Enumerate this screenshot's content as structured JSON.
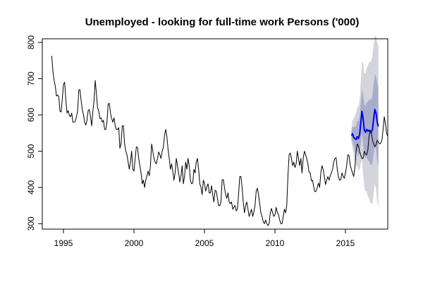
{
  "chart_data": {
    "type": "line",
    "title": "Unemployed - looking for full-time work Persons ('000)",
    "xlabel": "",
    "ylabel": "",
    "xlim": [
      1993.5,
      2018.0
    ],
    "ylim": [
      285,
      810
    ],
    "x_ticks": [
      1995,
      2000,
      2005,
      2010,
      2015
    ],
    "x_tick_labels": [
      "1995",
      "2000",
      "2005",
      "2010",
      "2015"
    ],
    "y_ticks": [
      300,
      400,
      500,
      600,
      700,
      800
    ],
    "y_tick_labels": [
      "300",
      "400",
      "500",
      "600",
      "700",
      "800"
    ],
    "grid": false,
    "legend": "none",
    "series": [
      {
        "role": "history",
        "color": "#000000",
        "x_start": 1994.17,
        "x_step": 0.0833333,
        "values": [
          763,
          720,
          695,
          680,
          652,
          655,
          650,
          610,
          608,
          645,
          685,
          690,
          640,
          605,
          612,
          598,
          595,
          605,
          580,
          580,
          582,
          595,
          610,
          668,
          670,
          640,
          615,
          600,
          580,
          572,
          585,
          612,
          615,
          595,
          570,
          610,
          640,
          695,
          660,
          620,
          610,
          590,
          592,
          580,
          585,
          560,
          560,
          580,
          630,
          632,
          605,
          590,
          580,
          592,
          570,
          560,
          560,
          565,
          508,
          520,
          570,
          570,
          520,
          500,
          490,
          470,
          450,
          472,
          500,
          450,
          445,
          480,
          512,
          510,
          480,
          460,
          440,
          410,
          420,
          400,
          420,
          432,
          445,
          432,
          460,
          520,
          500,
          480,
          470,
          465,
          480,
          498,
          490,
          480,
          500,
          510,
          545,
          560,
          540,
          505,
          480,
          450,
          465,
          445,
          420,
          440,
          480,
          460,
          440,
          415,
          432,
          460,
          410,
          430,
          470,
          450,
          480,
          460,
          420,
          410,
          412,
          450,
          440,
          470,
          480,
          450,
          410,
          400,
          380,
          420,
          410,
          390,
          402,
          410,
          385,
          385,
          405,
          380,
          360,
          392,
          390,
          370,
          350,
          350,
          360,
          420,
          422,
          400,
          380,
          370,
          385,
          360,
          355,
          360,
          340,
          345,
          350,
          335,
          340,
          380,
          430,
          430,
          400,
          360,
          330,
          350,
          360,
          340,
          320,
          330,
          340,
          320,
          332,
          350,
          390,
          398,
          380,
          355,
          330,
          320,
          305,
          300,
          310,
          300,
          295,
          300,
          330,
          342,
          330,
          320,
          325,
          345,
          330,
          325,
          310,
          300,
          300,
          320,
          340,
          330,
          350,
          430,
          490,
          495,
          480,
          460,
          470,
          455,
          465,
          500,
          480,
          460,
          480,
          440,
          480,
          500,
          490,
          480,
          465,
          442,
          440,
          418,
          420,
          400,
          388,
          390,
          400,
          412,
          400,
          440,
          460,
          450,
          430,
          408,
          420,
          430,
          420,
          432,
          440,
          450,
          470,
          480,
          482,
          450,
          430,
          420,
          422,
          440,
          430,
          425,
          440,
          460,
          490,
          488,
          462,
          450,
          440,
          430,
          455,
          500,
          520,
          515,
          500,
          488,
          480,
          480,
          500,
          492,
          490,
          502,
          540,
          558,
          550,
          530,
          520,
          512,
          518,
          530,
          525,
          520,
          522,
          530,
          560,
          595,
          575,
          550,
          540
        ]
      },
      {
        "role": "forecast",
        "color": "#0000ee",
        "x_start": 2015.42,
        "x_step": 0.0833333,
        "values": [
          543,
          548,
          538,
          535,
          532,
          540,
          535,
          545,
          578,
          610,
          590,
          558,
          552,
          560,
          555,
          558,
          552,
          552,
          562,
          590,
          615,
          605,
          580,
          568
        ]
      },
      {
        "role": "interval-95",
        "color": "#d4d4dc",
        "x_start": 2015.42,
        "x_step": 0.0833333,
        "upper": [
          560,
          585,
          590,
          598,
          605,
          620,
          625,
          640,
          690,
          745,
          745,
          715,
          715,
          730,
          735,
          745,
          745,
          750,
          765,
          795,
          820,
          815,
          800,
          790
        ],
        "lower": [
          526,
          511,
          486,
          472,
          459,
          460,
          445,
          450,
          466,
          475,
          435,
          401,
          389,
          390,
          375,
          371,
          359,
          354,
          359,
          385,
          410,
          395,
          360,
          346
        ]
      },
      {
        "role": "interval-80",
        "color": "#a9adcc",
        "x_start": 2015.42,
        "x_step": 0.0833333,
        "upper": [
          554,
          569,
          565,
          568,
          570,
          583,
          583,
          595,
          633,
          670,
          658,
          628,
          624,
          635,
          635,
          643,
          640,
          643,
          656,
          686,
          713,
          706,
          688,
          678
        ],
        "lower": [
          532,
          527,
          511,
          502,
          494,
          497,
          487,
          495,
          523,
          550,
          522,
          488,
          480,
          485,
          475,
          473,
          464,
          461,
          468,
          494,
          517,
          504,
          472,
          458
        ]
      }
    ]
  }
}
